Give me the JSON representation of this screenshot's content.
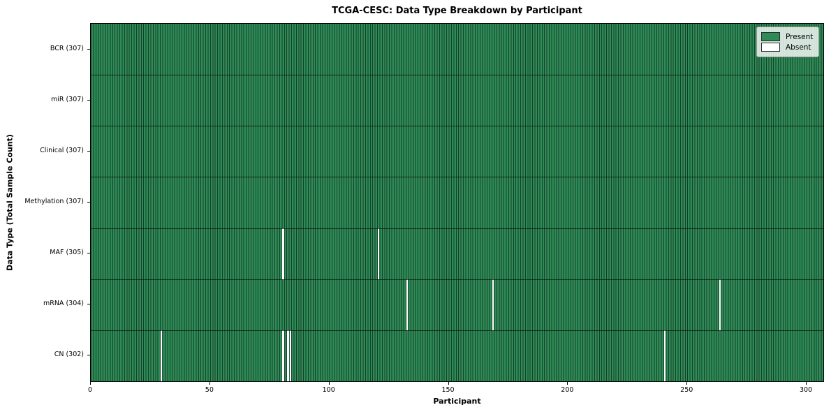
{
  "colors": {
    "present": "#2e8b57",
    "absent": "#ffffff",
    "bar_edge": "rgba(0,0,0,0.55)",
    "row_separator": "rgba(0,0,0,0.65)",
    "spine": "#000000"
  },
  "chart_data": {
    "type": "heatmap",
    "title": "TCGA-CESC: Data Type Breakdown by Participant",
    "xlabel": "Participant",
    "ylabel": "Data Type (Total Sample Count)",
    "legend": [
      {
        "label": "Present",
        "color": "#2e8b57"
      },
      {
        "label": "Absent",
        "color": "#ffffff"
      }
    ],
    "legend_position": "upper right",
    "grid": false,
    "n_participants": 307,
    "xlim": [
      0,
      307
    ],
    "x_ticks": [
      0,
      50,
      100,
      150,
      200,
      250,
      300
    ],
    "rows": [
      {
        "label": "BCR (307)",
        "data_type": "BCR",
        "total_samples": 307,
        "absent_participants": []
      },
      {
        "label": "miR (307)",
        "data_type": "miR",
        "total_samples": 307,
        "absent_participants": []
      },
      {
        "label": "Clinical (307)",
        "data_type": "Clinical",
        "total_samples": 307,
        "absent_participants": []
      },
      {
        "label": "Methylation (307)",
        "data_type": "Methylation",
        "total_samples": 307,
        "absent_participants": []
      },
      {
        "label": "MAF (305)",
        "data_type": "MAF",
        "total_samples": 305,
        "absent_participants": [
          80,
          120
        ]
      },
      {
        "label": "mRNA (304)",
        "data_type": "mRNA",
        "total_samples": 304,
        "absent_participants": [
          132,
          168,
          263
        ]
      },
      {
        "label": "CN (302)",
        "data_type": "CN",
        "total_samples": 302,
        "absent_participants": [
          29,
          80,
          82,
          83,
          240
        ]
      }
    ]
  }
}
